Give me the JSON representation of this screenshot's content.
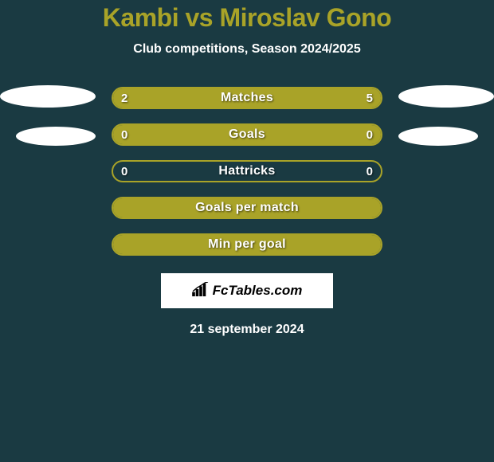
{
  "header": {
    "title": "Kambi vs Miroslav Gono",
    "subtitle": "Club competitions, Season 2024/2025"
  },
  "colors": {
    "accent": "#a9a328",
    "background": "#1a3a42",
    "text": "#ffffff",
    "box_bg": "#ffffff"
  },
  "bars": [
    {
      "label": "Matches",
      "left_value": "2",
      "right_value": "5",
      "left_fill_pct": 28,
      "right_fill_pct": 72,
      "show_values": true
    },
    {
      "label": "Goals",
      "left_value": "0",
      "right_value": "0",
      "left_fill_pct": 0,
      "right_fill_pct": 100,
      "show_values": true
    },
    {
      "label": "Hattricks",
      "left_value": "0",
      "right_value": "0",
      "left_fill_pct": 0,
      "right_fill_pct": 0,
      "show_values": true
    },
    {
      "label": "Goals per match",
      "left_value": "",
      "right_value": "",
      "left_fill_pct": 0,
      "right_fill_pct": 100,
      "show_values": false
    },
    {
      "label": "Min per goal",
      "left_value": "",
      "right_value": "",
      "left_fill_pct": 0,
      "right_fill_pct": 100,
      "show_values": false
    }
  ],
  "brand": {
    "text": "FcTables.com"
  },
  "date": "21 september 2024"
}
